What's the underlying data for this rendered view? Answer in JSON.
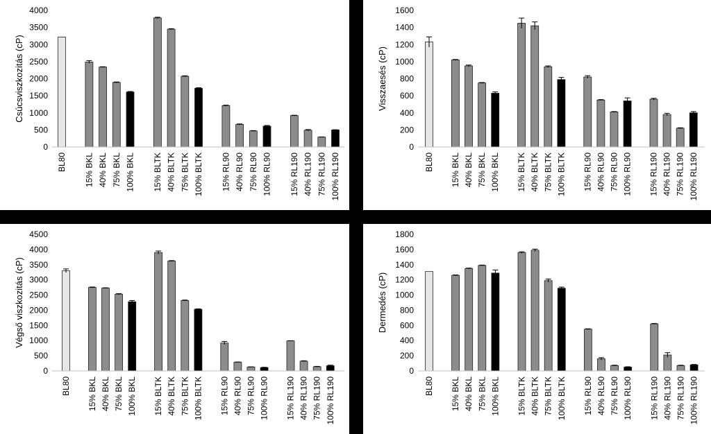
{
  "colors": {
    "light": "#e6e6e6",
    "mid": "#8c8c8c",
    "dark": "#000000",
    "outline": "#222222"
  },
  "chart_data": [
    {
      "type": "bar",
      "ylabel": "Csúcsviszkozitás (cP)",
      "ylim": [
        0,
        4000
      ],
      "yticks": [
        0,
        500,
        1000,
        1500,
        2000,
        2500,
        3000,
        3500,
        4000
      ],
      "grid": false,
      "groups": [
        {
          "labels": [
            "BL80"
          ],
          "values": [
            3220
          ],
          "errors": [
            0
          ]
        },
        {
          "labels": [
            "15% BKL",
            "40% BKL",
            "75% BKL",
            "100% BKL"
          ],
          "values": [
            2490,
            2340,
            1890,
            1610
          ],
          "errors": [
            40,
            10,
            15,
            15
          ]
        },
        {
          "labels": [
            "15% BLTK",
            "40% BLTK",
            "75% BLTK",
            "100% BLTK"
          ],
          "values": [
            3780,
            3450,
            2070,
            1720
          ],
          "errors": [
            20,
            15,
            15,
            15
          ]
        },
        {
          "labels": [
            "15% RL90",
            "40% RL90",
            "75% RL90",
            "100% RL90"
          ],
          "values": [
            1210,
            660,
            470,
            610
          ],
          "errors": [
            15,
            15,
            10,
            20
          ]
        },
        {
          "labels": [
            "15% RL190",
            "40% RL190",
            "75% RL190",
            "100% RL190"
          ],
          "values": [
            920,
            490,
            290,
            500
          ],
          "errors": [
            10,
            20,
            5,
            5
          ]
        }
      ]
    },
    {
      "type": "bar",
      "ylabel": "Visszaesés (cP)",
      "ylim": [
        0,
        1600
      ],
      "yticks": [
        0,
        200,
        400,
        600,
        800,
        1000,
        1200,
        1400,
        1600
      ],
      "grid": false,
      "groups": [
        {
          "labels": [
            "BL80"
          ],
          "values": [
            1230
          ],
          "errors": [
            60
          ]
        },
        {
          "labels": [
            "15% BKL",
            "40% BKL",
            "75% BKL",
            "100% BKL"
          ],
          "values": [
            1020,
            950,
            750,
            630
          ],
          "errors": [
            5,
            10,
            5,
            15
          ]
        },
        {
          "labels": [
            "15% BLTK",
            "40% BLTK",
            "75% BLTK",
            "100% BLTK"
          ],
          "values": [
            1450,
            1420,
            940,
            790
          ],
          "errors": [
            60,
            45,
            10,
            25
          ]
        },
        {
          "labels": [
            "15% RL90",
            "40% RL90",
            "75% RL90",
            "100% RL90"
          ],
          "values": [
            820,
            550,
            410,
            540
          ],
          "errors": [
            15,
            5,
            5,
            35
          ]
        },
        {
          "labels": [
            "15% RL190",
            "40% RL190",
            "75% RL190",
            "100% RL190"
          ],
          "values": [
            560,
            380,
            220,
            400
          ],
          "errors": [
            10,
            15,
            5,
            15
          ]
        }
      ]
    },
    {
      "type": "bar",
      "ylabel": "Végső viszkozitás (cP)",
      "ylim": [
        0,
        4500
      ],
      "yticks": [
        0,
        500,
        1000,
        1500,
        2000,
        2500,
        3000,
        3500,
        4000,
        4500
      ],
      "grid": false,
      "groups": [
        {
          "labels": [
            "BL80"
          ],
          "values": [
            3300
          ],
          "errors": [
            60
          ]
        },
        {
          "labels": [
            "15% BKL",
            "40% BKL",
            "75% BKL",
            "100% BKL"
          ],
          "values": [
            2750,
            2730,
            2530,
            2280
          ],
          "errors": [
            15,
            10,
            15,
            40
          ]
        },
        {
          "labels": [
            "15% BLTK",
            "40% BLTK",
            "75% BLTK",
            "100% BLTK"
          ],
          "values": [
            3900,
            3620,
            2320,
            2030
          ],
          "errors": [
            50,
            15,
            15,
            15
          ]
        },
        {
          "labels": [
            "15% RL90",
            "40% RL90",
            "75% RL90",
            "100% RL90"
          ],
          "values": [
            920,
            290,
            130,
            110
          ],
          "errors": [
            50,
            5,
            5,
            10
          ]
        },
        {
          "labels": [
            "15% RL190",
            "40% RL190",
            "75% RL190",
            "100% RL190"
          ],
          "values": [
            990,
            320,
            140,
            170
          ],
          "errors": [
            5,
            15,
            10,
            20
          ]
        }
      ]
    },
    {
      "type": "bar",
      "ylabel": "Dermedés (cP)",
      "ylim": [
        0,
        1800
      ],
      "yticks": [
        0,
        200,
        400,
        600,
        800,
        1000,
        1200,
        1400,
        1600,
        1800
      ],
      "grid": false,
      "groups": [
        {
          "labels": [
            "BL80"
          ],
          "values": [
            1310
          ],
          "errors": [
            0
          ]
        },
        {
          "labels": [
            "15% BKL",
            "40% BKL",
            "75% BKL",
            "100% BKL"
          ],
          "values": [
            1260,
            1350,
            1390,
            1290
          ],
          "errors": [
            5,
            5,
            5,
            40
          ]
        },
        {
          "labels": [
            "15% BLTK",
            "40% BLTK",
            "75% BLTK",
            "100% BLTK"
          ],
          "values": [
            1560,
            1590,
            1190,
            1090
          ],
          "errors": [
            10,
            15,
            20,
            15
          ]
        },
        {
          "labels": [
            "15% RL90",
            "40% RL90",
            "75% RL90",
            "100% RL90"
          ],
          "values": [
            550,
            160,
            70,
            50
          ],
          "errors": [
            5,
            15,
            5,
            5
          ]
        },
        {
          "labels": [
            "15% RL190",
            "40% RL190",
            "75% RL190",
            "100% RL190"
          ],
          "values": [
            620,
            210,
            70,
            80
          ],
          "errors": [
            5,
            30,
            5,
            5
          ]
        }
      ]
    }
  ]
}
